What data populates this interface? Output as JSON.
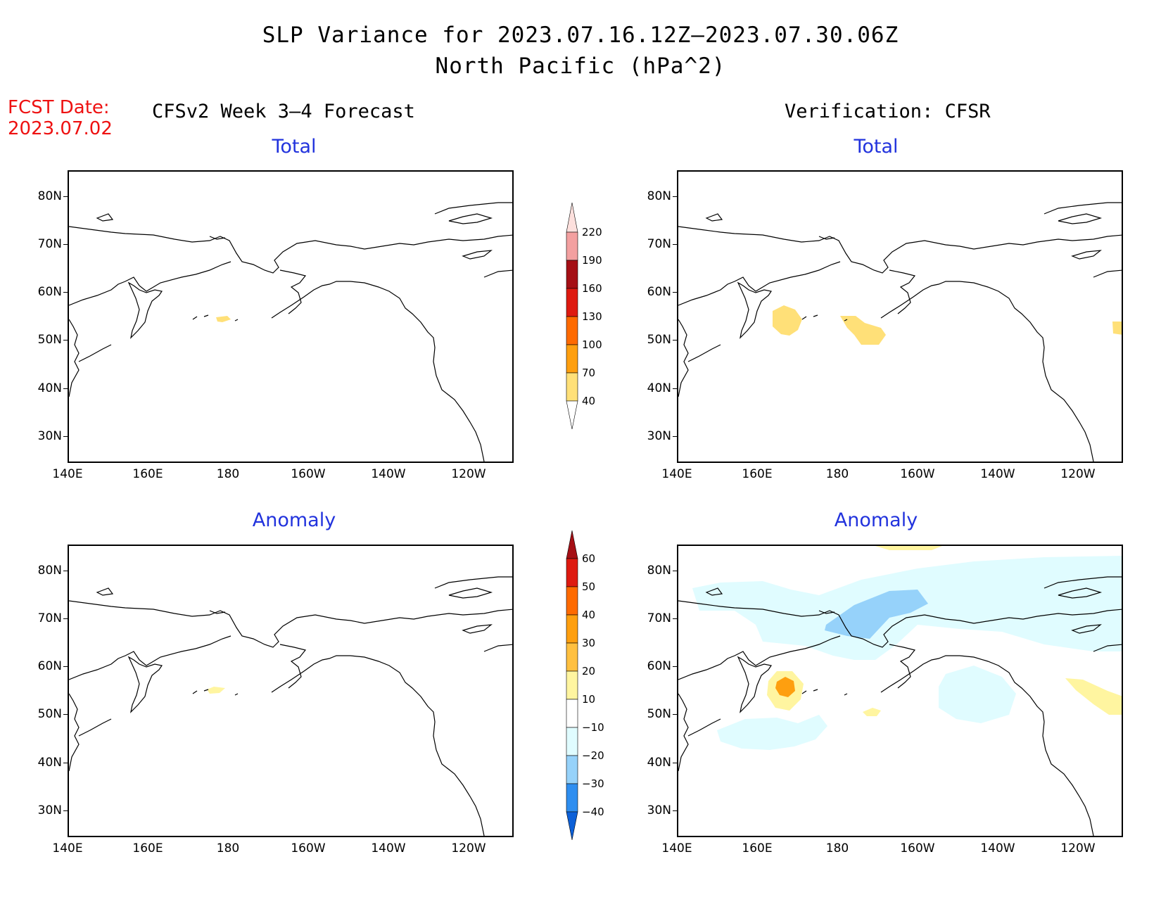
{
  "title": {
    "line1": "SLP Variance for 2023.07.16.12Z–2023.07.30.06Z",
    "line2": "North Pacific (hPa^2)"
  },
  "fcst": {
    "label": "FCST Date:",
    "date": "2023.07.02"
  },
  "left_column_title": "CFSv2 Week 3–4 Forecast",
  "right_column_title": "Verification: CFSR",
  "panels": {
    "forecast_total": {
      "title": "Total"
    },
    "forecast_anomaly": {
      "title": "Anomaly"
    },
    "verification_total": {
      "title": "Total"
    },
    "verification_anomaly": {
      "title": "Anomaly"
    }
  },
  "axes": {
    "lat_labels": [
      "80N",
      "70N",
      "60N",
      "50N",
      "40N",
      "30N"
    ],
    "lon_labels": [
      "140E",
      "160E",
      "180",
      "160W",
      "140W",
      "120W"
    ]
  },
  "colorbars": {
    "total": {
      "labels": [
        "220",
        "190",
        "160",
        "130",
        "100",
        "70",
        "40"
      ],
      "colors": [
        "#fde0dd",
        "#f3a0a0",
        "#a50f15",
        "#de1a10",
        "#fe6a00",
        "#fe9f0f",
        "#ffe078"
      ]
    },
    "anomaly": {
      "labels": [
        "60",
        "50",
        "40",
        "30",
        "20",
        "10",
        "−10",
        "−20",
        "−30",
        "−40"
      ],
      "colors": [
        "#a50f15",
        "#de1a10",
        "#fe6a00",
        "#fe9f0f",
        "#ffc040",
        "#fff5a0",
        "#ffffff",
        "#e0fcff",
        "#96d2fa",
        "#2e8ef0",
        "#0c60d8"
      ]
    }
  },
  "shading_colors": {
    "light_yellow": "#ffe078",
    "pale_yellow": "#fff5a0",
    "gold": "#ffc040",
    "orange": "#fe9f0f",
    "pale_cyan": "#e0fcff",
    "light_blue": "#96d2fa"
  }
}
